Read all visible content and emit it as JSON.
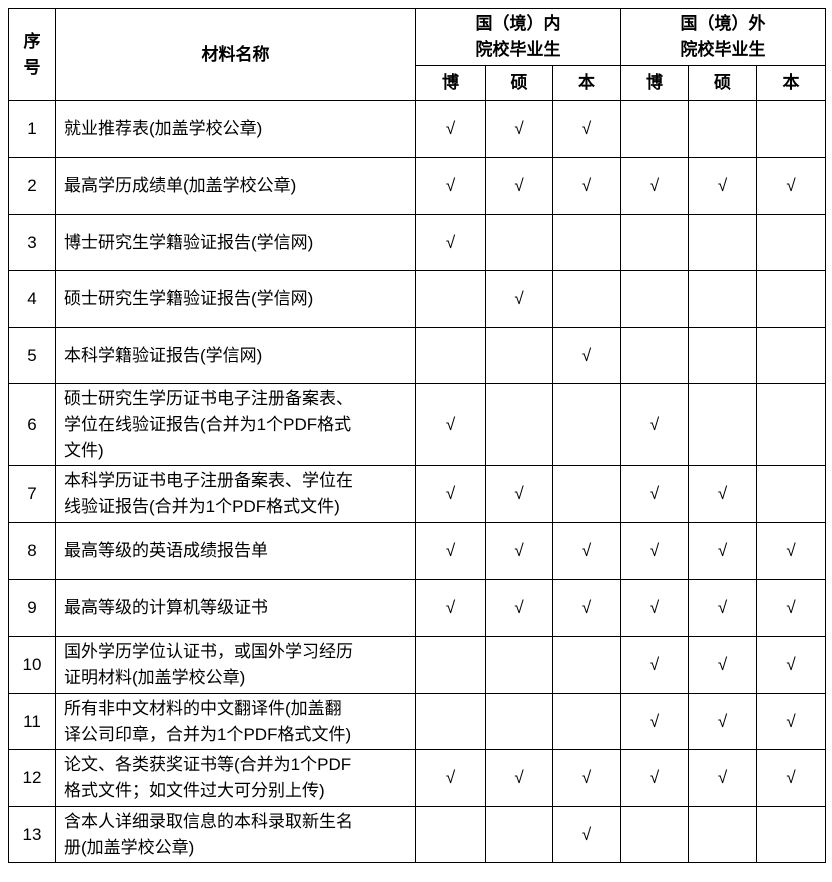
{
  "header": {
    "seq": "序号",
    "name": "材料名称",
    "domestic": [
      "国（境）内",
      "院校毕业生"
    ],
    "foreign": [
      "国（境）外",
      "院校毕业生"
    ],
    "levels": [
      "博",
      "硕",
      "本",
      "博",
      "硕",
      "本"
    ]
  },
  "check_mark": "√",
  "rows": [
    {
      "no": "1",
      "lines": [
        "就业推荐表(加盖学校公章)"
      ],
      "marks": [
        "√",
        "√",
        "√",
        "",
        "",
        ""
      ],
      "h": 57
    },
    {
      "no": "2",
      "lines": [
        "最高学历成绩单(加盖学校公章)"
      ],
      "marks": [
        "√",
        "√",
        "√",
        "√",
        "√",
        "√"
      ],
      "h": 57
    },
    {
      "no": "3",
      "lines": [
        "博士研究生学籍验证报告(学信网)"
      ],
      "marks": [
        "√",
        "",
        "",
        "",
        "",
        ""
      ],
      "h": 56
    },
    {
      "no": "4",
      "lines": [
        "硕士研究生学籍验证报告(学信网)"
      ],
      "marks": [
        "",
        "√",
        "",
        "",
        "",
        ""
      ],
      "h": 57
    },
    {
      "no": "5",
      "lines": [
        "本科学籍验证报告(学信网)"
      ],
      "marks": [
        "",
        "",
        "√",
        "",
        "",
        ""
      ],
      "h": 56
    },
    {
      "no": "6",
      "lines": [
        "硕士研究生学历证书电子注册备案表、",
        "学位在线验证报告(合并为1个PDF格式",
        "文件)"
      ],
      "marks": [
        "√",
        "",
        "",
        "√",
        "",
        ""
      ],
      "h": 82
    },
    {
      "no": "7",
      "lines": [
        "本科学历证书电子注册备案表、学位在",
        "线验证报告(合并为1个PDF格式文件)"
      ],
      "marks": [
        "√",
        "√",
        "",
        "√",
        "√",
        ""
      ],
      "h": 57
    },
    {
      "no": "8",
      "lines": [
        "最高等级的英语成绩报告单"
      ],
      "marks": [
        "√",
        "√",
        "√",
        "√",
        "√",
        "√"
      ],
      "h": 57
    },
    {
      "no": "9",
      "lines": [
        "最高等级的计算机等级证书"
      ],
      "marks": [
        "√",
        "√",
        "√",
        "√",
        "√",
        "√"
      ],
      "h": 57
    },
    {
      "no": "10",
      "lines": [
        "国外学历学位认证书，或国外学习经历",
        "证明材料(加盖学校公章)"
      ],
      "marks": [
        "",
        "",
        "",
        "√",
        "√",
        "√"
      ],
      "h": 57
    },
    {
      "no": "11",
      "lines": [
        "所有非中文材料的中文翻译件(加盖翻",
        "译公司印章，合并为1个PDF格式文件)"
      ],
      "marks": [
        "",
        "",
        "",
        "√",
        "√",
        "√"
      ],
      "h": 56
    },
    {
      "no": "12",
      "lines": [
        "论文、各类获奖证书等(合并为1个PDF",
        "格式文件；如文件过大可分别上传)"
      ],
      "marks": [
        "√",
        "√",
        "√",
        "√",
        "√",
        "√"
      ],
      "h": 57
    },
    {
      "no": "13",
      "lines": [
        "含本人详细录取信息的本科录取新生名",
        "册(加盖学校公章)"
      ],
      "marks": [
        "",
        "",
        "√",
        "",
        "",
        ""
      ],
      "h": 56
    }
  ]
}
